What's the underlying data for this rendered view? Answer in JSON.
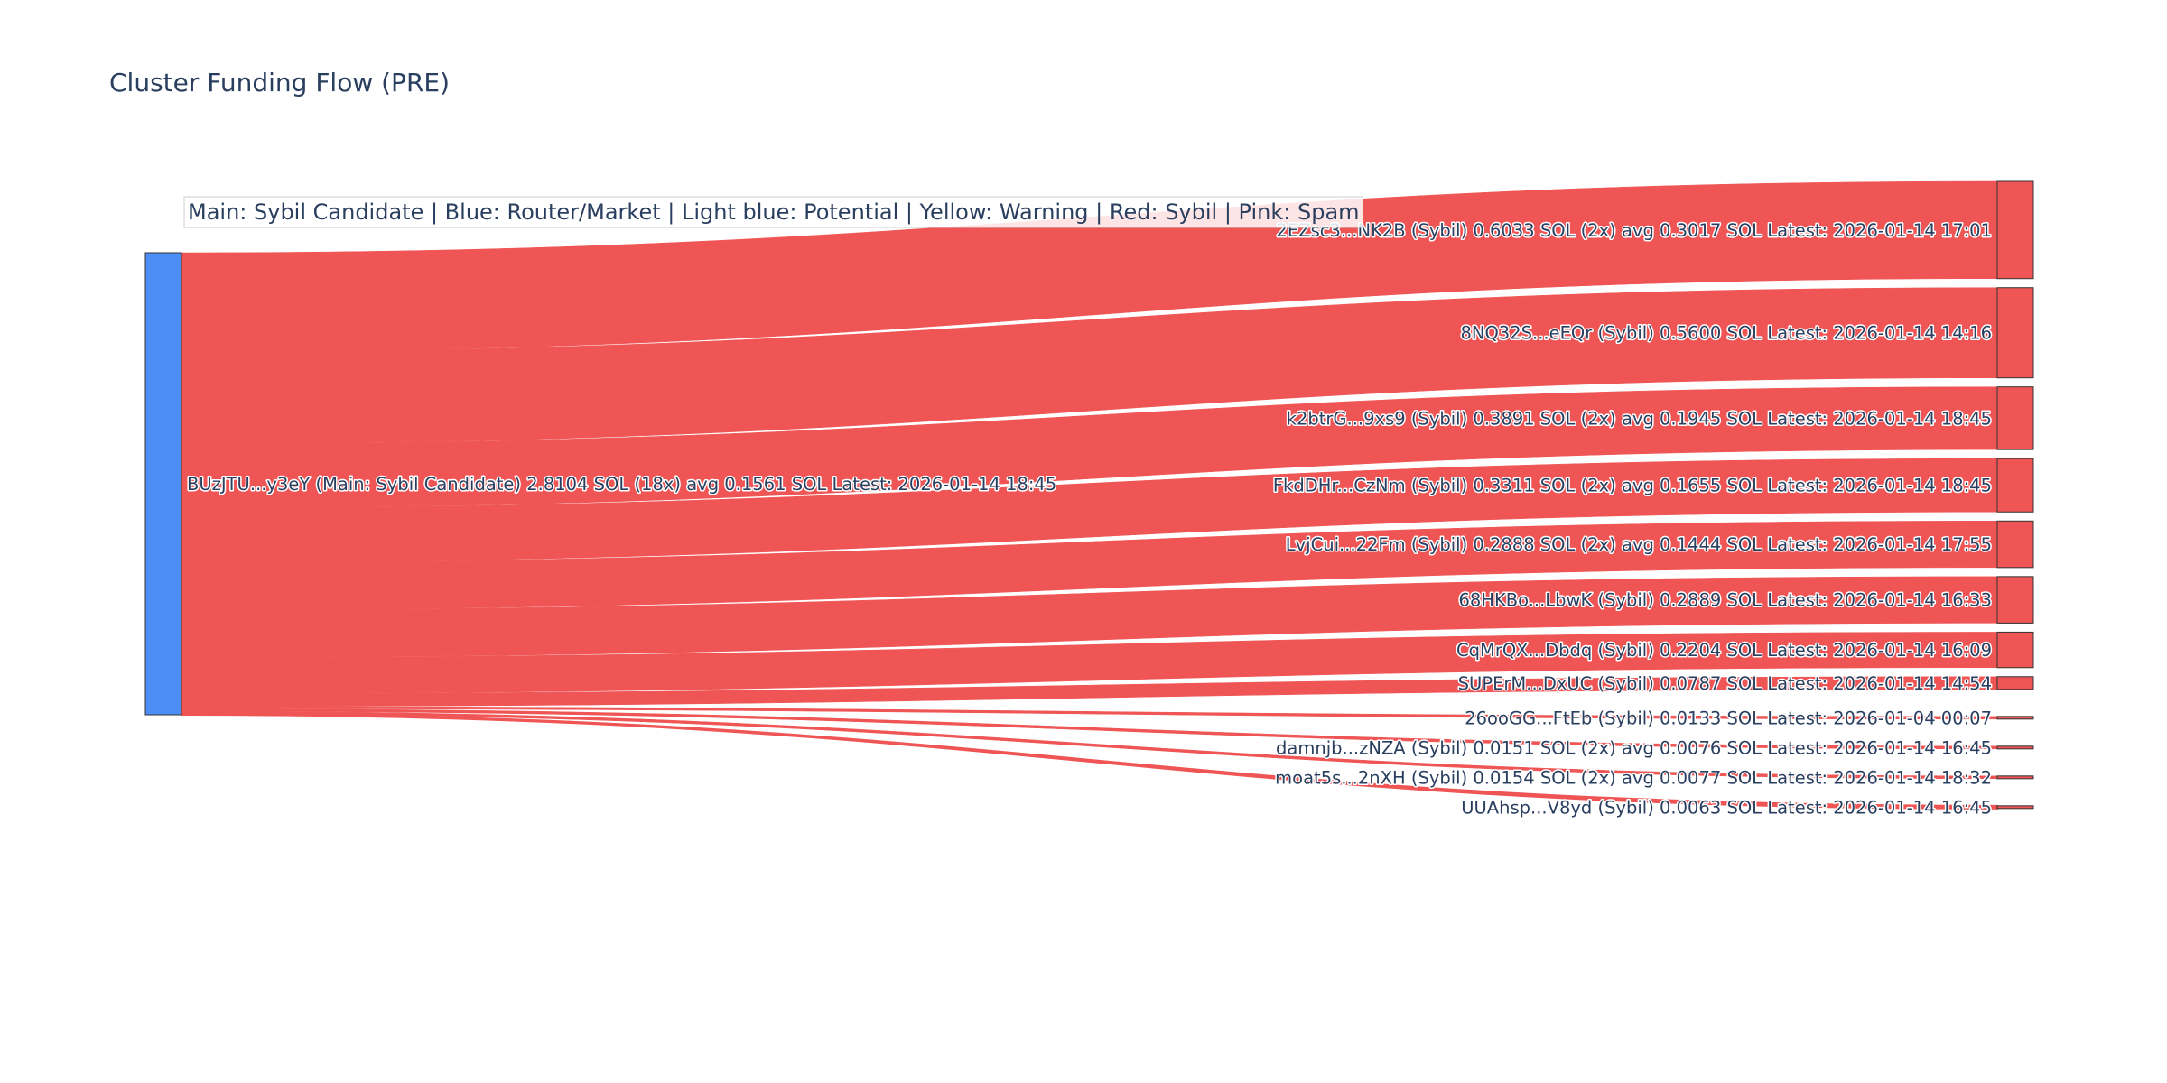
{
  "title": "Cluster Funding Flow (PRE)",
  "annotation": "Main: Sybil Candidate  |  Blue: Router/Market | Light blue: Potential | Yellow: Warning | Red: Sybil | Pink: Spam",
  "colors": {
    "main_node": "#4c8df6",
    "sybil_node": "#ef5555",
    "sybil_link": "#ef5555",
    "node_border": "#333333",
    "text": "#2a3f5f"
  },
  "chart_data": {
    "type": "sankey",
    "title": "Cluster Funding Flow (PRE)",
    "source": {
      "label": "BUzJTU...y3eY (Main: Sybil Candidate) 2.8104 SOL (18x) avg 0.1561 SOL Latest: 2026-01-14 18:45",
      "category": "Main: Sybil Candidate",
      "value": 2.8104
    },
    "targets": [
      {
        "label": "2EZsc3...NK2B (Sybil) 0.6033 SOL (2x) avg 0.3017 SOL Latest: 2026-01-14 17:01",
        "value": 0.6033,
        "category": "Sybil"
      },
      {
        "label": "8NQ32S...eEQr (Sybil) 0.5600 SOL Latest: 2026-01-14 14:16",
        "value": 0.56,
        "category": "Sybil"
      },
      {
        "label": "k2btrG...9xs9 (Sybil) 0.3891 SOL (2x) avg 0.1945 SOL Latest: 2026-01-14 18:45",
        "value": 0.3891,
        "category": "Sybil"
      },
      {
        "label": "FkdDHr...CzNm (Sybil) 0.3311 SOL (2x) avg 0.1655 SOL Latest: 2026-01-14 18:45",
        "value": 0.3311,
        "category": "Sybil"
      },
      {
        "label": "LvjCui...22Fm (Sybil) 0.2888 SOL (2x) avg 0.1444 SOL Latest: 2026-01-14 17:55",
        "value": 0.2888,
        "category": "Sybil"
      },
      {
        "label": "68HKBo...LbwK (Sybil) 0.2889 SOL Latest: 2026-01-14 16:33",
        "value": 0.2889,
        "category": "Sybil"
      },
      {
        "label": "CqMrQX...Dbdq (Sybil) 0.2204 SOL Latest: 2026-01-14 16:09",
        "value": 0.2204,
        "category": "Sybil"
      },
      {
        "label": "SUPErM...DxUC (Sybil) 0.0787 SOL Latest: 2026-01-14 14:54",
        "value": 0.0787,
        "category": "Sybil"
      },
      {
        "label": "26ooGG...FtEb (Sybil) 0.0133 SOL Latest: 2026-01-04 00:07",
        "value": 0.0133,
        "category": "Sybil"
      },
      {
        "label": "damnjb...zNZA (Sybil) 0.0151 SOL (2x) avg 0.0076 SOL Latest: 2026-01-14 16:45",
        "value": 0.0151,
        "category": "Sybil"
      },
      {
        "label": "moat5s...2nXH (Sybil) 0.0154 SOL (2x) avg 0.0077 SOL Latest: 2026-01-14 18:32",
        "value": 0.0154,
        "category": "Sybil"
      },
      {
        "label": "UUAhsp...V8yd (Sybil) 0.0063 SOL Latest: 2026-01-14 16:45",
        "value": 0.0063,
        "category": "Sybil"
      }
    ]
  }
}
